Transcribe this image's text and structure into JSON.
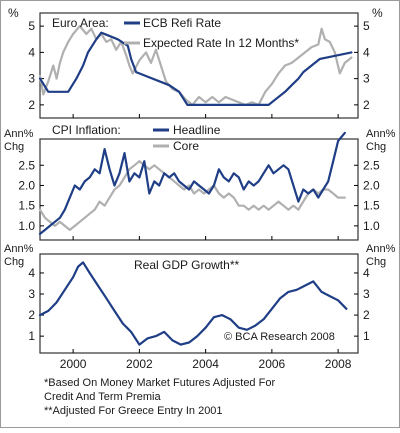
{
  "colors": {
    "navy": "#1f3e86",
    "gray": "#b0b0b0",
    "border": "#333333",
    "grid": "#000000"
  },
  "chart_data": [
    {
      "type": "line",
      "panel_label": "Euro Area:",
      "y_unit_left": "%",
      "y_unit_right": "%",
      "ylim": [
        1.5,
        5.5
      ],
      "yticks": [
        "2",
        "3",
        "4",
        "5"
      ],
      "xlim": [
        1999.0,
        2008.6
      ],
      "grid": false,
      "series": [
        {
          "name": "ECB Refi Rate",
          "color": "#1f3e86",
          "x": [
            1999.0,
            1999.25,
            1999.85,
            2000.1,
            2000.3,
            2000.45,
            2000.7,
            2000.85,
            2001.35,
            2001.65,
            2001.75,
            2001.9,
            2002.9,
            2003.2,
            2003.45,
            2005.9,
            2006.15,
            2006.4,
            2006.6,
            2006.8,
            2006.95,
            2007.2,
            2007.45,
            2008.4
          ],
          "y": [
            3.0,
            2.5,
            2.5,
            3.0,
            3.5,
            4.0,
            4.5,
            4.75,
            4.5,
            4.25,
            3.75,
            3.25,
            2.75,
            2.5,
            2.0,
            2.0,
            2.25,
            2.5,
            2.75,
            3.0,
            3.25,
            3.5,
            3.75,
            4.0
          ]
        },
        {
          "name": "Expected Rate In 12 Months*",
          "color": "#b0b0b0",
          "x": [
            1999.0,
            1999.1,
            1999.25,
            1999.4,
            1999.5,
            1999.6,
            1999.7,
            1999.85,
            2000.0,
            2000.2,
            2000.4,
            2000.55,
            2000.7,
            2000.85,
            2001.0,
            2001.15,
            2001.3,
            2001.45,
            2001.6,
            2001.7,
            2001.8,
            2002.0,
            2002.2,
            2002.35,
            2002.5,
            2002.65,
            2002.8,
            2003.0,
            2003.2,
            2003.4,
            2003.6,
            2003.8,
            2004.0,
            2004.2,
            2004.4,
            2004.6,
            2004.8,
            2005.0,
            2005.2,
            2005.4,
            2005.6,
            2005.8,
            2006.0,
            2006.2,
            2006.4,
            2006.6,
            2006.8,
            2007.0,
            2007.2,
            2007.4,
            2007.5,
            2007.6,
            2007.75,
            2007.9,
            2008.05,
            2008.2,
            2008.4
          ],
          "y": [
            3.1,
            2.4,
            2.9,
            3.5,
            3.0,
            3.6,
            4.0,
            4.4,
            4.7,
            5.0,
            4.7,
            4.9,
            4.5,
            4.7,
            4.4,
            4.5,
            4.1,
            4.4,
            3.9,
            3.5,
            3.2,
            3.7,
            4.0,
            3.6,
            4.1,
            3.5,
            2.9,
            2.6,
            2.5,
            2.2,
            2.0,
            2.3,
            2.1,
            2.3,
            2.1,
            2.3,
            2.2,
            2.1,
            2.0,
            2.1,
            2.0,
            2.5,
            2.8,
            3.2,
            3.5,
            3.6,
            3.8,
            4.0,
            4.2,
            4.3,
            4.9,
            4.5,
            4.4,
            4.0,
            3.2,
            3.6,
            3.8
          ]
        }
      ]
    },
    {
      "type": "line",
      "panel_label": "CPI Inflation:",
      "y_unit_left": [
        "Ann%",
        "Chg"
      ],
      "y_unit_right": [
        "Ann%",
        "Chg"
      ],
      "ylim": [
        0.65,
        3.15
      ],
      "yticks": [
        "1.0",
        "1.5",
        "2.0",
        "2.5"
      ],
      "xlim": [
        1999.0,
        2008.6
      ],
      "grid": false,
      "series": [
        {
          "name": "Headline",
          "color": "#1f3e86",
          "x": [
            1999.0,
            1999.15,
            1999.3,
            1999.45,
            1999.6,
            1999.75,
            1999.9,
            2000.05,
            2000.2,
            2000.35,
            2000.5,
            2000.65,
            2000.8,
            2000.95,
            2001.1,
            2001.25,
            2001.4,
            2001.55,
            2001.7,
            2001.85,
            2002.0,
            2002.15,
            2002.3,
            2002.45,
            2002.6,
            2002.75,
            2002.9,
            2003.05,
            2003.2,
            2003.35,
            2003.5,
            2003.65,
            2003.8,
            2003.95,
            2004.1,
            2004.25,
            2004.4,
            2004.55,
            2004.7,
            2004.85,
            2005.0,
            2005.15,
            2005.3,
            2005.45,
            2005.6,
            2005.75,
            2005.9,
            2006.05,
            2006.2,
            2006.35,
            2006.5,
            2006.65,
            2006.8,
            2006.95,
            2007.1,
            2007.25,
            2007.4,
            2007.55,
            2007.7,
            2007.85,
            2008.0,
            2008.2
          ],
          "y": [
            0.8,
            0.9,
            1.0,
            1.1,
            1.2,
            1.4,
            1.7,
            2.0,
            1.9,
            2.1,
            2.2,
            2.4,
            2.3,
            2.9,
            2.4,
            2.0,
            2.3,
            2.8,
            2.1,
            2.3,
            2.2,
            2.6,
            1.8,
            2.1,
            2.0,
            2.3,
            2.2,
            2.3,
            2.1,
            2.0,
            1.9,
            2.1,
            2.0,
            1.9,
            1.8,
            2.0,
            2.4,
            2.2,
            2.1,
            2.3,
            2.2,
            1.9,
            2.1,
            2.0,
            2.1,
            2.3,
            2.5,
            2.3,
            2.4,
            2.5,
            2.4,
            2.0,
            1.6,
            1.9,
            1.8,
            1.9,
            1.7,
            1.9,
            2.1,
            2.6,
            3.1,
            3.3
          ]
        },
        {
          "name": "Core",
          "color": "#b0b0b0",
          "x": [
            1999.0,
            1999.15,
            1999.3,
            1999.45,
            1999.6,
            1999.75,
            1999.9,
            2000.05,
            2000.2,
            2000.35,
            2000.5,
            2000.65,
            2000.8,
            2000.95,
            2001.1,
            2001.25,
            2001.4,
            2001.55,
            2001.7,
            2001.85,
            2002.0,
            2002.15,
            2002.3,
            2002.45,
            2002.6,
            2002.75,
            2002.9,
            2003.05,
            2003.2,
            2003.35,
            2003.5,
            2003.65,
            2003.8,
            2003.95,
            2004.1,
            2004.25,
            2004.4,
            2004.55,
            2004.7,
            2004.85,
            2005.0,
            2005.15,
            2005.3,
            2005.45,
            2005.6,
            2005.75,
            2005.9,
            2006.05,
            2006.2,
            2006.35,
            2006.5,
            2006.65,
            2006.8,
            2006.95,
            2007.1,
            2007.25,
            2007.4,
            2007.55,
            2007.7,
            2007.85,
            2008.0,
            2008.2
          ],
          "y": [
            1.4,
            1.2,
            1.1,
            1.0,
            1.1,
            1.0,
            0.9,
            1.0,
            1.1,
            1.2,
            1.3,
            1.4,
            1.6,
            1.5,
            1.7,
            1.9,
            2.0,
            2.2,
            2.4,
            2.5,
            2.6,
            2.5,
            2.4,
            2.5,
            2.4,
            2.3,
            2.2,
            2.1,
            2.0,
            1.9,
            2.0,
            1.8,
            1.9,
            1.8,
            1.9,
            2.0,
            1.8,
            1.7,
            1.8,
            1.7,
            1.5,
            1.5,
            1.4,
            1.5,
            1.4,
            1.5,
            1.4,
            1.5,
            1.6,
            1.5,
            1.4,
            1.5,
            1.4,
            1.6,
            1.8,
            1.9,
            1.8,
            1.9,
            1.9,
            1.8,
            1.7,
            1.7
          ]
        }
      ]
    },
    {
      "type": "line",
      "panel_label": "",
      "y_unit_left": [
        "Ann%",
        "Chg"
      ],
      "y_unit_right": [
        "Ann%",
        "Chg"
      ],
      "ylim": [
        0.2,
        4.9
      ],
      "yticks": [
        "1",
        "2",
        "3",
        "4"
      ],
      "xlim": [
        1999.0,
        2008.6
      ],
      "xticks": [
        "2000",
        "2002",
        "2004",
        "2006",
        "2008"
      ],
      "x_tick_values": [
        2000,
        2002,
        2004,
        2006,
        2008
      ],
      "grid": false,
      "annotation": "Real GDP Growth**",
      "source": "© BCA Research 2008",
      "series": [
        {
          "name": "Real GDP Growth**",
          "color": "#1f3e86",
          "x": [
            1999.0,
            1999.25,
            1999.5,
            1999.75,
            2000.0,
            2000.15,
            2000.3,
            2000.5,
            2000.75,
            2001.0,
            2001.25,
            2001.5,
            2001.75,
            2002.0,
            2002.25,
            2002.5,
            2002.75,
            2003.0,
            2003.25,
            2003.5,
            2003.75,
            2004.0,
            2004.25,
            2004.5,
            2004.75,
            2005.0,
            2005.25,
            2005.5,
            2005.75,
            2006.0,
            2006.25,
            2006.5,
            2006.75,
            2007.0,
            2007.25,
            2007.5,
            2007.75,
            2008.0,
            2008.25
          ],
          "y": [
            2.0,
            2.2,
            2.6,
            3.2,
            3.8,
            4.3,
            4.5,
            4.0,
            3.4,
            2.8,
            2.2,
            1.6,
            1.2,
            0.6,
            0.9,
            1.0,
            1.2,
            0.8,
            0.6,
            0.7,
            1.0,
            1.4,
            1.9,
            2.0,
            1.8,
            1.4,
            1.3,
            1.5,
            1.8,
            2.3,
            2.8,
            3.1,
            3.2,
            3.4,
            3.6,
            3.1,
            2.9,
            2.7,
            2.3
          ]
        }
      ]
    }
  ],
  "footnotes": [
    "*Based On Money Market Futures Adjusted For",
    "Credit And Term Premia",
    "**Adjusted For Greece Entry In 2001"
  ]
}
